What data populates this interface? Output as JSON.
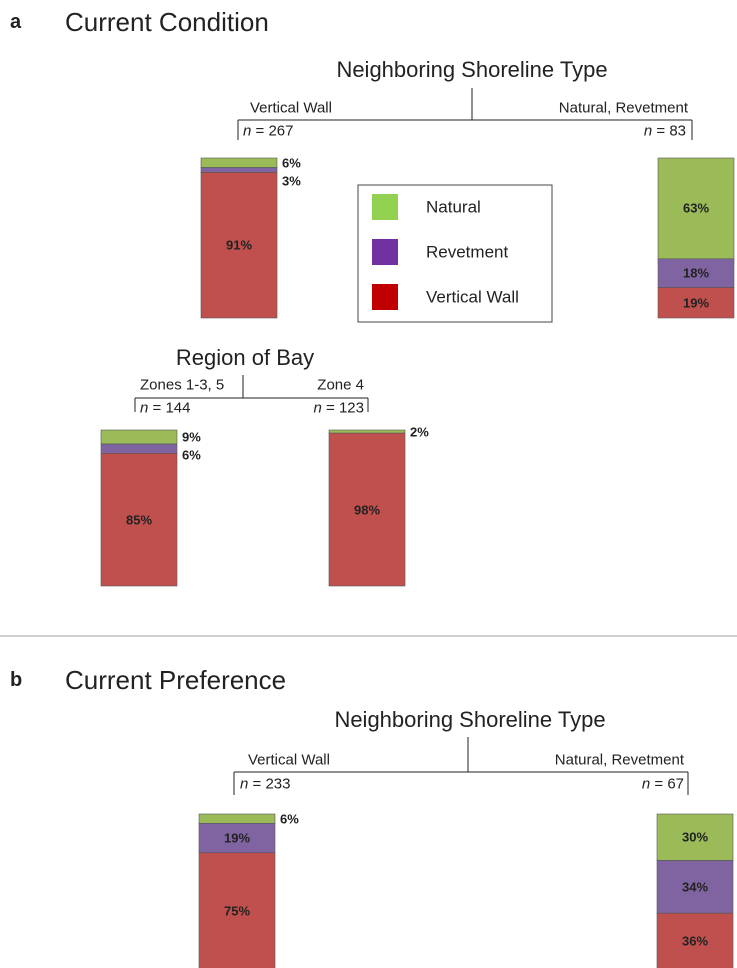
{
  "legend": {
    "items": [
      {
        "name": "Natural",
        "color": "#92d050"
      },
      {
        "name": "Revetment",
        "color": "#7030a0"
      },
      {
        "name": "Vertical Wall",
        "color": "#c00000"
      }
    ]
  },
  "segment_colors": [
    "#9bbb59",
    "#8064a2",
    "#c0504d"
  ],
  "panels": [
    {
      "letter": "a",
      "title": "Current Condition",
      "trees": [
        {
          "title": "Neighboring Shoreline Type",
          "branches": [
            {
              "label": "Vertical Wall",
              "n": "n = 267",
              "bar": {
                "values": [
                  6,
                  3,
                  91
                ],
                "value_labels": [
                  "6%",
                  "3%",
                  "91%"
                ]
              }
            },
            {
              "label": "Natural, Revetment",
              "n": "n = 83",
              "bar": {
                "values": [
                  63,
                  18,
                  19
                ],
                "value_labels": [
                  "63%",
                  "18%",
                  "19%"
                ]
              }
            }
          ]
        },
        {
          "title": "Region of Bay",
          "branches": [
            {
              "label": "Zones 1-3, 5",
              "n": "n = 144",
              "bar": {
                "values": [
                  9,
                  6,
                  85
                ],
                "value_labels": [
                  "9%",
                  "6%",
                  "85%"
                ]
              }
            },
            {
              "label": "Zone 4",
              "n": "n = 123",
              "bar": {
                "values": [
                  2,
                  0,
                  98
                ],
                "value_labels": [
                  "2%",
                  null,
                  "98%"
                ]
              }
            }
          ]
        }
      ]
    },
    {
      "letter": "b",
      "title": "Current Preference",
      "trees": [
        {
          "title": "Neighboring Shoreline Type",
          "branches": [
            {
              "label": "Vertical Wall",
              "n": "n = 233",
              "bar": {
                "values": [
                  6,
                  19,
                  75
                ],
                "value_labels": [
                  "6%",
                  "19%",
                  "75%"
                ]
              }
            },
            {
              "label": "Natural, Revetment",
              "n": "n = 67",
              "bar": {
                "values": [
                  30,
                  34,
                  36
                ],
                "value_labels": [
                  "30%",
                  "34%",
                  "36%"
                ]
              }
            }
          ]
        }
      ]
    }
  ]
}
